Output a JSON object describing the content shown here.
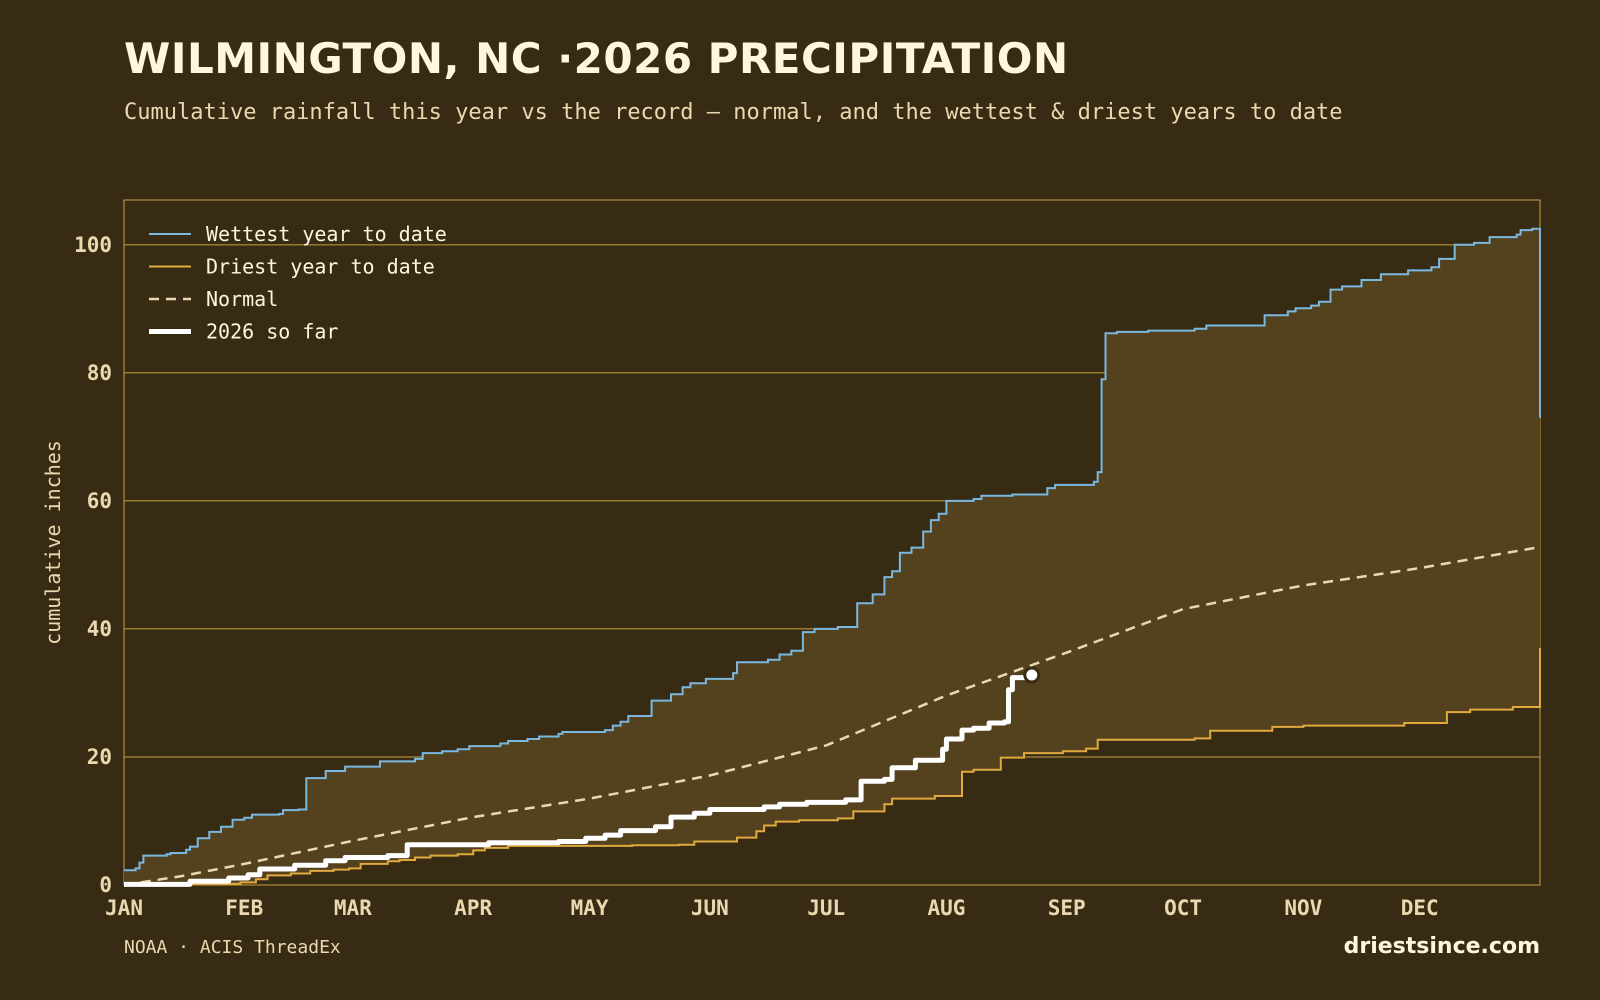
{
  "header": {
    "title": "WILMINGTON, NC ·2026 PRECIPITATION",
    "subtitle": "Cumulative rainfall this year vs the record — normal, and the wettest & driest years to date"
  },
  "footer": {
    "source": "NOAA · ACIS ThreadEx",
    "brand": "driestsince.com"
  },
  "colors": {
    "background": "#382b14",
    "wettest": "#7ab8e0",
    "driest": "#e0aa3e",
    "normal": "#ead9b0",
    "current": "#ffffff",
    "band_fill": "#54411e",
    "grid": "#c9a040"
  },
  "chart_data": {
    "type": "line",
    "ylabel": "cumulative inches",
    "xlabel": "",
    "ylim": [
      0,
      107
    ],
    "xlim_day": [
      0,
      365
    ],
    "y_ticks": [
      0,
      20,
      40,
      60,
      80,
      100
    ],
    "month_ticks": [
      {
        "label": "JAN",
        "day": 0
      },
      {
        "label": "FEB",
        "day": 31
      },
      {
        "label": "MAR",
        "day": 59
      },
      {
        "label": "APR",
        "day": 90
      },
      {
        "label": "MAY",
        "day": 120
      },
      {
        "label": "JUN",
        "day": 151
      },
      {
        "label": "JUL",
        "day": 181
      },
      {
        "label": "AUG",
        "day": 212
      },
      {
        "label": "SEP",
        "day": 243
      },
      {
        "label": "OCT",
        "day": 273
      },
      {
        "label": "NOV",
        "day": 304
      },
      {
        "label": "DEC",
        "day": 334
      }
    ],
    "legend_position": "top-left",
    "grid": "horizontal",
    "series": [
      {
        "name": "Wettest year to date",
        "key": "wettest",
        "style": "step",
        "points": [
          [
            0,
            2.3
          ],
          [
            3,
            2.6
          ],
          [
            4,
            3.5
          ],
          [
            5,
            4.6
          ],
          [
            11,
            4.8
          ],
          [
            12,
            5
          ],
          [
            16,
            5.5
          ],
          [
            17,
            6
          ],
          [
            19,
            7.3
          ],
          [
            22,
            8.3
          ],
          [
            25,
            9.1
          ],
          [
            28,
            10.2
          ],
          [
            31,
            10.5
          ],
          [
            33,
            11
          ],
          [
            40,
            11.1
          ],
          [
            41,
            11.7
          ],
          [
            45,
            11.8
          ],
          [
            47,
            16.7
          ],
          [
            52,
            17.8
          ],
          [
            57,
            18.5
          ],
          [
            66,
            19.3
          ],
          [
            75,
            19.7
          ],
          [
            77,
            20.6
          ],
          [
            82,
            20.9
          ],
          [
            86,
            21.2
          ],
          [
            89,
            21.7
          ],
          [
            97,
            22.1
          ],
          [
            99,
            22.5
          ],
          [
            104,
            22.8
          ],
          [
            107,
            23.2
          ],
          [
            112,
            23.6
          ],
          [
            113,
            23.9
          ],
          [
            124,
            24.2
          ],
          [
            126,
            24.9
          ],
          [
            128,
            25.5
          ],
          [
            130,
            26.4
          ],
          [
            136,
            28.8
          ],
          [
            141,
            29.8
          ],
          [
            144,
            30.9
          ],
          [
            146,
            31.5
          ],
          [
            150,
            32.2
          ],
          [
            157,
            33.1
          ],
          [
            158,
            34.8
          ],
          [
            166,
            35.2
          ],
          [
            169,
            36
          ],
          [
            172,
            36.6
          ],
          [
            175,
            39.5
          ],
          [
            178,
            40
          ],
          [
            184,
            40.3
          ],
          [
            189,
            44
          ],
          [
            193,
            45.4
          ],
          [
            196,
            48.1
          ],
          [
            198,
            49
          ],
          [
            200,
            51.9
          ],
          [
            203,
            52.7
          ],
          [
            206,
            55.2
          ],
          [
            208,
            57
          ],
          [
            210,
            58
          ],
          [
            212,
            60
          ],
          [
            219,
            60.3
          ],
          [
            221,
            60.8
          ],
          [
            229,
            61
          ],
          [
            238,
            62
          ],
          [
            240,
            62.5
          ],
          [
            250,
            63
          ],
          [
            251,
            64.5
          ],
          [
            252,
            79
          ],
          [
            253,
            86.2
          ],
          [
            256,
            86.4
          ],
          [
            264,
            86.6
          ],
          [
            276,
            86.9
          ],
          [
            279,
            87.4
          ],
          [
            294,
            89
          ],
          [
            300,
            89.6
          ],
          [
            302,
            90.1
          ],
          [
            306,
            90.5
          ],
          [
            308,
            91.1
          ],
          [
            311,
            93
          ],
          [
            314,
            93.5
          ],
          [
            319,
            94.5
          ],
          [
            324,
            95.4
          ],
          [
            331,
            96
          ],
          [
            337,
            96.5
          ],
          [
            339,
            97.8
          ],
          [
            343,
            100
          ],
          [
            348,
            100.3
          ],
          [
            352,
            101.2
          ],
          [
            359,
            101.6
          ],
          [
            360,
            102.3
          ],
          [
            363,
            102.5
          ],
          [
            365,
            73
          ]
        ]
      },
      {
        "name": "Driest year to date",
        "key": "driest",
        "style": "step",
        "points": [
          [
            0,
            0.1
          ],
          [
            17,
            0.2
          ],
          [
            30,
            0.4
          ],
          [
            34,
            0.9
          ],
          [
            37,
            1.5
          ],
          [
            43,
            1.8
          ],
          [
            48,
            2.2
          ],
          [
            54,
            2.4
          ],
          [
            58,
            2.6
          ],
          [
            61,
            3.3
          ],
          [
            68,
            3.7
          ],
          [
            71,
            3.9
          ],
          [
            75,
            4.3
          ],
          [
            79,
            4.6
          ],
          [
            86,
            4.8
          ],
          [
            90,
            5.4
          ],
          [
            93,
            5.8
          ],
          [
            99,
            6.1
          ],
          [
            131,
            6.2
          ],
          [
            143,
            6.3
          ],
          [
            147,
            6.8
          ],
          [
            158,
            7.4
          ],
          [
            163,
            8.4
          ],
          [
            165,
            9.3
          ],
          [
            168,
            9.9
          ],
          [
            174,
            10.1
          ],
          [
            184,
            10.4
          ],
          [
            188,
            11.5
          ],
          [
            196,
            12.6
          ],
          [
            198,
            13.5
          ],
          [
            209,
            13.9
          ],
          [
            216,
            17.7
          ],
          [
            219,
            18
          ],
          [
            226,
            19.9
          ],
          [
            232,
            20.6
          ],
          [
            242,
            20.9
          ],
          [
            248,
            21.3
          ],
          [
            251,
            22.7
          ],
          [
            276,
            22.9
          ],
          [
            280,
            24.1
          ],
          [
            296,
            24.7
          ],
          [
            304,
            24.9
          ],
          [
            330,
            25.3
          ],
          [
            341,
            27
          ],
          [
            347,
            27.4
          ],
          [
            358,
            27.8
          ],
          [
            364,
            27.8
          ],
          [
            365,
            37
          ]
        ]
      },
      {
        "name": "Normal",
        "key": "normal",
        "style": "dashed",
        "points": [
          [
            0,
            0
          ],
          [
            15,
            1.4
          ],
          [
            31,
            3.3
          ],
          [
            59,
            6.9
          ],
          [
            90,
            10.6
          ],
          [
            120,
            13.5
          ],
          [
            151,
            17.1
          ],
          [
            181,
            21.8
          ],
          [
            212,
            29.6
          ],
          [
            243,
            36.3
          ],
          [
            273,
            43.1
          ],
          [
            304,
            46.8
          ],
          [
            334,
            49.5
          ],
          [
            365,
            52.8
          ]
        ]
      },
      {
        "name": "2026 so far",
        "key": "current",
        "style": "step-thick",
        "points": [
          [
            0,
            0.1
          ],
          [
            17,
            0.6
          ],
          [
            27,
            1.1
          ],
          [
            32,
            1.6
          ],
          [
            35,
            2.5
          ],
          [
            44,
            3.1
          ],
          [
            52,
            3.8
          ],
          [
            57,
            4.3
          ],
          [
            68,
            4.6
          ],
          [
            73,
            6.3
          ],
          [
            94,
            6.6
          ],
          [
            112,
            6.8
          ],
          [
            119,
            7.3
          ],
          [
            124,
            7.8
          ],
          [
            128,
            8.5
          ],
          [
            137,
            9.1
          ],
          [
            141,
            10.6
          ],
          [
            147,
            11.2
          ],
          [
            151,
            11.8
          ],
          [
            165,
            12.2
          ],
          [
            169,
            12.6
          ],
          [
            176,
            12.9
          ],
          [
            186,
            13.3
          ],
          [
            190,
            16.2
          ],
          [
            196,
            16.5
          ],
          [
            198,
            18.3
          ],
          [
            204,
            19.5
          ],
          [
            211,
            21.2
          ],
          [
            212,
            22.8
          ],
          [
            216,
            24.2
          ],
          [
            219,
            24.5
          ],
          [
            223,
            25.3
          ],
          [
            227,
            25.5
          ],
          [
            228,
            30.5
          ],
          [
            229,
            32.4
          ],
          [
            234,
            32.8
          ]
        ]
      }
    ]
  }
}
